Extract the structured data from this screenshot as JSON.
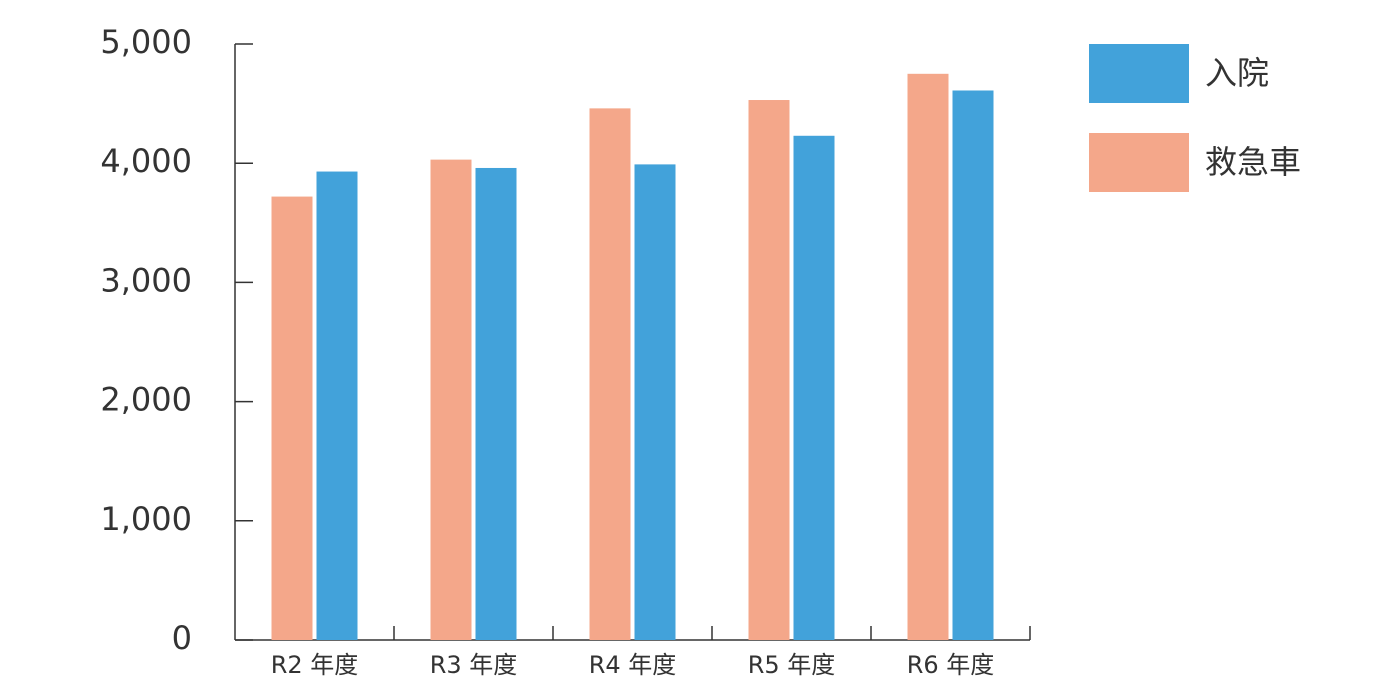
{
  "chart_data": {
    "type": "bar",
    "categories": [
      "R2 年度",
      "R3 年度",
      "R4 年度",
      "R5 年度",
      "R6 年度"
    ],
    "series": [
      {
        "name": "救急車",
        "color": "#f4a78a",
        "values": [
          3720,
          4030,
          4460,
          4530,
          4750
        ]
      },
      {
        "name": "入院",
        "color": "#42a2da",
        "values": [
          3930,
          3960,
          3990,
          4230,
          4610
        ]
      }
    ],
    "ylim": [
      0,
      5000
    ],
    "yticks": [
      0,
      {
        "value": 1000,
        "label": "1,000"
      },
      {
        "value": 2000,
        "label": "2,000"
      },
      {
        "value": 3000,
        "label": "3,000"
      },
      {
        "value": 4000,
        "label": "4,000"
      },
      {
        "value": 5000,
        "label": "5,000"
      }
    ],
    "grid": false,
    "legend": "right"
  }
}
